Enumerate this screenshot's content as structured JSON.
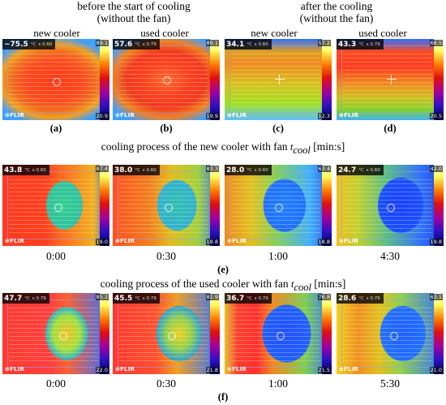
{
  "headers": {
    "before_line1": "before the start of cooling",
    "before_line2": "(without the fan)",
    "after_line1": "after the cooling",
    "after_line2": "(without the fan)",
    "new_cooler_1": "new cooler",
    "used_cooler_1": "used cooler",
    "new_cooler_2": "new cooler",
    "used_cooler_2": "used cooler"
  },
  "top_row": [
    {
      "label": "(a)",
      "temp": "~75.5",
      "eps": "ε 0.60",
      "max": "89.1",
      "min": "20.9"
    },
    {
      "label": "(b)",
      "temp": "57.6",
      "eps": "ε 0.79",
      "max": "89.1",
      "min": "19.9"
    },
    {
      "label": "(c)",
      "temp": "34.1",
      "eps": "ε 0.60",
      "max": "57.2",
      "min": "12.3"
    },
    {
      "label": "(d)",
      "temp": "43.3",
      "eps": "ε 0.79",
      "max": "66.5",
      "min": "20.5"
    }
  ],
  "new_caption": {
    "text": "cooling process of the new cooler with fan ",
    "var": "t",
    "sub": "cool",
    "unit": " [min:s]"
  },
  "new_row": [
    {
      "temp": "43.8",
      "eps": "ε 0.60",
      "max": "87.4",
      "min": "19.0",
      "time": "0:00"
    },
    {
      "temp": "38.0",
      "eps": "ε 0.60",
      "max": "83.3",
      "min": "18.8",
      "time": "0:30"
    },
    {
      "temp": "28.0",
      "eps": "ε 0.60",
      "max": "63.4",
      "min": "18.8",
      "time": "1:00"
    },
    {
      "temp": "24.7",
      "eps": "ε 0.60",
      "max": "42.0",
      "min": "19.8",
      "time": "4:30"
    }
  ],
  "new_label": "(e)",
  "used_caption": {
    "text": "cooling process of the used cooler with fan ",
    "var": "t",
    "sub": "cool",
    "unit": " [min:s]"
  },
  "used_row": [
    {
      "temp": "47.7",
      "eps": "ε 0.79",
      "max": "85.2",
      "min": "22.0",
      "time": "0:00"
    },
    {
      "temp": "45.5",
      "eps": "ε 0.79",
      "max": "81.9",
      "min": "21.8",
      "time": "0:30"
    },
    {
      "temp": "36.7",
      "eps": "ε 0.79",
      "max": "76.8",
      "min": "21.5",
      "time": "1:00"
    },
    {
      "temp": "28.6",
      "eps": "ε 0.79",
      "max": "63.1",
      "min": "21.0",
      "time": "5:30"
    }
  ],
  "used_label": "(f)",
  "unit_c": "°C",
  "brand": "FLIR"
}
